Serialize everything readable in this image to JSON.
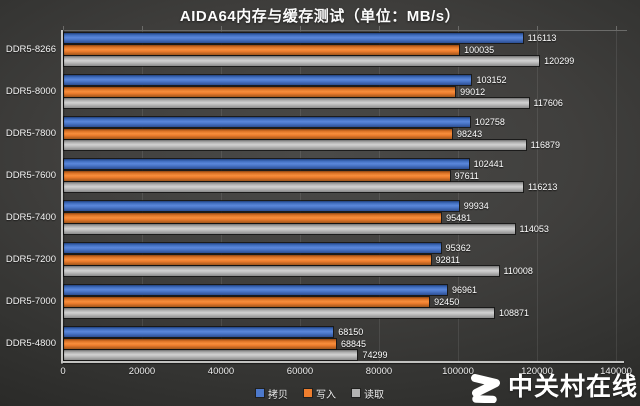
{
  "title": "AIDA64内存与缓存测试（单位：MB/s）",
  "chart_data": {
    "type": "bar",
    "orientation": "horizontal",
    "title": "AIDA64内存与缓存测试（单位：MB/s）",
    "categories": [
      "DDR5-8266",
      "DDR5-8000",
      "DDR5-7800",
      "DDR5-7600",
      "DDR5-7400",
      "DDR5-7200",
      "DDR5-7000",
      "DDR5-4800"
    ],
    "series": [
      {
        "name": "拷贝",
        "color": "#4d79cb",
        "values": [
          116113,
          103152,
          102758,
          102441,
          99934,
          95362,
          96961,
          68150
        ]
      },
      {
        "name": "写入",
        "color": "#ef7e2e",
        "values": [
          100035,
          99012,
          98243,
          97611,
          95481,
          92811,
          92450,
          68845
        ]
      },
      {
        "name": "读取",
        "color": "#b3b3b3",
        "values": [
          120299,
          117606,
          116879,
          116213,
          114053,
          110008,
          108871,
          74299
        ]
      }
    ],
    "xlim": [
      0,
      140000
    ],
    "xticks": [
      0,
      20000,
      40000,
      60000,
      80000,
      100000,
      120000,
      140000
    ],
    "grid": true,
    "legend_position": "bottom",
    "value_labels": true
  },
  "watermark": {
    "logo": "zol-logo",
    "text": "中关村在线"
  }
}
